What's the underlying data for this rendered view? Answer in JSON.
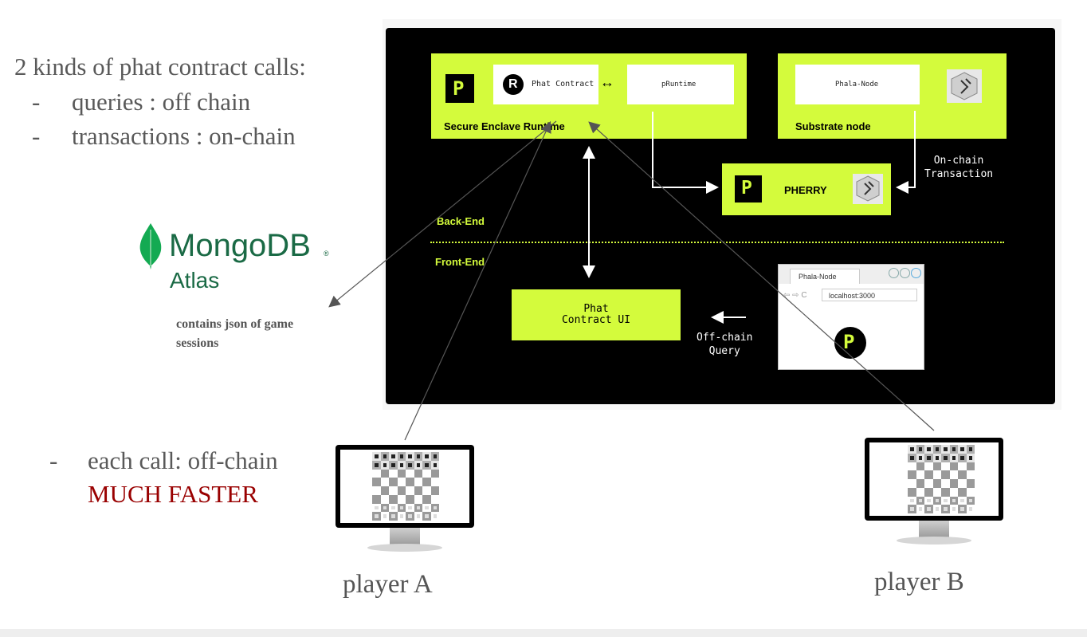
{
  "notes": {
    "heading": "2 kinds of phat contract calls:",
    "bullets": [
      {
        "dash": "-",
        "text": "queries : off chain"
      },
      {
        "dash": "-",
        "text": "transactions : on-chain"
      }
    ],
    "second_bullet": {
      "dash": "-",
      "line1": "each call: off-chain",
      "line2": "MUCH FASTER"
    }
  },
  "mongodb": {
    "name": "MongoDB",
    "reg": "®",
    "sub": "Atlas",
    "caption_line1": "contains json of game",
    "caption_line2": "sessions"
  },
  "diagram": {
    "enclave": {
      "title": "Secure Enclave Runtime",
      "rust_symbol": "R",
      "phat_contract": "Phat Contract",
      "pruntime": "pRuntime",
      "link": "↔"
    },
    "substrate": {
      "title": "Substrate node",
      "node_label": "Phala-Node"
    },
    "pherry": {
      "title": "PHERRY"
    },
    "onchain": {
      "line1": "On-chain",
      "line2": "Transaction"
    },
    "backend": "Back-End",
    "frontend": "Front-End",
    "phat_ui": {
      "line1": "Phat",
      "line2": "Contract UI"
    },
    "offchain": {
      "line1": "Off-chain",
      "line2": "Query"
    },
    "browser": {
      "tab": "Phala-Node",
      "url": "localhost:3000",
      "nav": "⇦ ⇨ C"
    },
    "logo_letter": "P"
  },
  "players": {
    "a": "player A",
    "b": "player B"
  },
  "colors": {
    "lime": "#d4fb3c",
    "mongo_green": "#13aa52",
    "mongo_dark": "#1a6a45",
    "faster_red": "#990000"
  }
}
